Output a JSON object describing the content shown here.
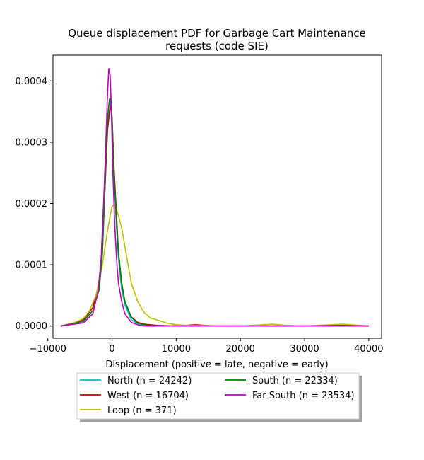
{
  "chart_data": {
    "type": "line",
    "title_lines": [
      "Queue displacement PDF for Garbage Cart Maintenance",
      "requests (code SIE)"
    ],
    "xlabel": "Displacement (positive = late, negative = early)",
    "ylabel": "",
    "xlim": [
      -9200,
      42000
    ],
    "ylim": [
      -2e-05,
      0.000442
    ],
    "x_ticks": [
      -10000,
      0,
      10000,
      20000,
      30000,
      40000
    ],
    "x_tick_labels": [
      "−10000",
      "0",
      "10000",
      "20000",
      "30000",
      "40000"
    ],
    "y_ticks": [
      0.0,
      0.0001,
      0.0002,
      0.0003,
      0.0004
    ],
    "y_tick_labels": [
      "0.0000",
      "0.0001",
      "0.0002",
      "0.0003",
      "0.0004"
    ],
    "grid": false,
    "legend_position": "bottom-center",
    "series": [
      {
        "name": "North (n = 24242)",
        "color": "#00bfbf",
        "x": [
          -8000,
          -6000,
          -4500,
          -3000,
          -2000,
          -1500,
          -1000,
          -700,
          -500,
          -300,
          0,
          300,
          700,
          1000,
          1500,
          2000,
          3000,
          4000,
          5000,
          7000,
          10000,
          20000,
          30000,
          40000
        ],
        "y": [
          0.0,
          4e-06,
          7e-06,
          2.5e-05,
          6e-05,
          0.00012,
          0.00025,
          0.00033,
          0.00036,
          0.000368,
          0.00033,
          0.00024,
          0.00016,
          0.00011,
          6e-05,
          3.5e-05,
          1e-05,
          4e-06,
          2e-06,
          0.0,
          0.0,
          0.0,
          0.0,
          0.0
        ]
      },
      {
        "name": "West (n = 16704)",
        "color": "#bf0000",
        "x": [
          -8000,
          -6000,
          -4500,
          -3000,
          -2000,
          -1500,
          -1000,
          -700,
          -400,
          -200,
          0,
          300,
          700,
          1000,
          1500,
          2000,
          3000,
          4000,
          5000,
          7000,
          10000,
          13000,
          16000,
          20000,
          30000,
          36000,
          40000
        ],
        "y": [
          0.0,
          5e-06,
          1e-05,
          3e-05,
          7e-05,
          0.00013,
          0.00025,
          0.00032,
          0.00035,
          0.00036,
          0.00034,
          0.00026,
          0.00018,
          0.00012,
          7e-05,
          4e-05,
          1.5e-05,
          6e-06,
          3e-06,
          1e-06,
          0.0,
          2e-06,
          0.0,
          0.0,
          0.0,
          2e-06,
          0.0
        ]
      },
      {
        "name": "Loop (n = 371)",
        "color": "#bfbf00",
        "x": [
          -8000,
          -6000,
          -4500,
          -3500,
          -2500,
          -1500,
          -800,
          -300,
          0,
          300,
          700,
          1000,
          1500,
          2000,
          2500,
          3000,
          4000,
          5000,
          6000,
          7000,
          8500,
          10000,
          12000,
          20000,
          25000,
          27000,
          30000,
          36000,
          40000
        ],
        "y": [
          0.0,
          5e-06,
          1.2e-05,
          2.5e-05,
          5e-05,
          0.0001,
          0.00015,
          0.00018,
          0.000195,
          0.000198,
          0.00019,
          0.00018,
          0.00016,
          0.00013,
          0.0001,
          7e-05,
          4e-05,
          2.2e-05,
          1.3e-05,
          1e-05,
          5e-06,
          2e-06,
          1e-06,
          0.0,
          3e-06,
          1e-06,
          0.0,
          3e-06,
          0.0
        ]
      },
      {
        "name": "South (n = 22334)",
        "color": "#007f00",
        "x": [
          -8000,
          -6000,
          -4500,
          -3000,
          -2000,
          -1500,
          -1000,
          -700,
          -400,
          -200,
          0,
          300,
          700,
          1000,
          1500,
          2000,
          3000,
          4000,
          5000,
          7000,
          10000,
          20000,
          30000,
          40000
        ],
        "y": [
          0.0,
          4e-06,
          8e-06,
          2.5e-05,
          6e-05,
          0.00012,
          0.00026,
          0.00034,
          0.00037,
          0.000372,
          0.00034,
          0.00025,
          0.00017,
          0.00012,
          7e-05,
          4e-05,
          1.4e-05,
          5e-06,
          2e-06,
          0.0,
          0.0,
          0.0,
          0.0,
          0.0
        ]
      },
      {
        "name": "Far South (n = 23534)",
        "color": "#bf00bf",
        "x": [
          -8000,
          -6000,
          -4500,
          -3000,
          -2200,
          -1700,
          -1200,
          -900,
          -700,
          -500,
          -300,
          -100,
          100,
          400,
          700,
          1000,
          1500,
          2000,
          3000,
          4000,
          5000,
          7000,
          10000,
          20000,
          30000,
          36000,
          40000
        ],
        "y": [
          0.0,
          3e-06,
          5e-06,
          2e-05,
          5.5e-05,
          0.00011,
          0.00023,
          0.00032,
          0.00038,
          0.00042,
          0.00041,
          0.00035,
          0.00026,
          0.00017,
          0.00011,
          7e-05,
          4e-05,
          2e-05,
          6e-06,
          2e-06,
          0.0,
          0.0,
          0.0,
          0.0,
          0.0,
          1e-06,
          0.0
        ]
      }
    ]
  }
}
